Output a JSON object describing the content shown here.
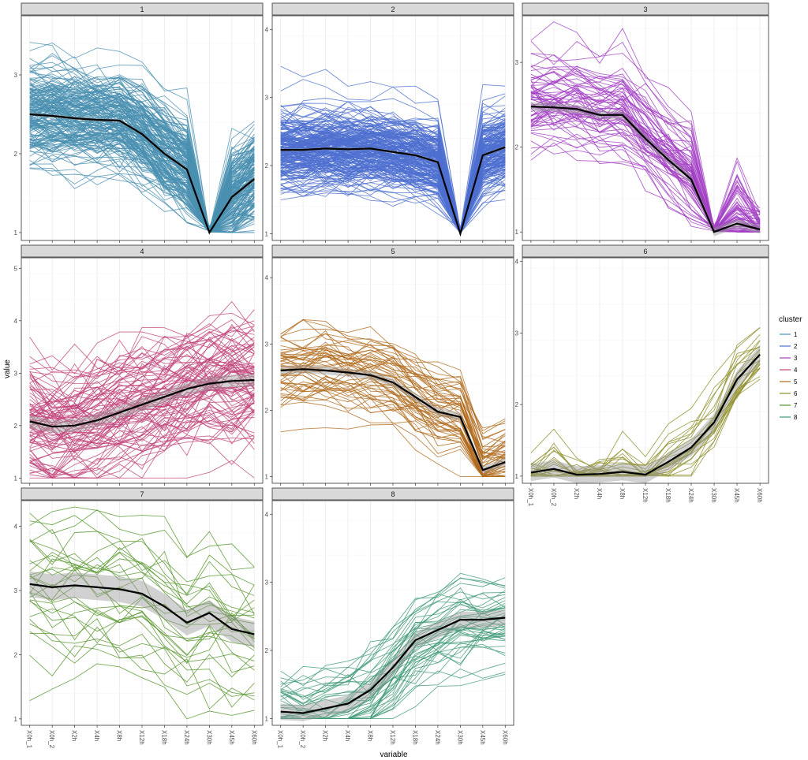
{
  "chart_data": {
    "type": "line",
    "xlabel": "variable",
    "ylabel": "value",
    "categories": [
      "X0h_1",
      "X0h_2",
      "X2h",
      "X4h",
      "X8h",
      "X12h",
      "X18h",
      "X24h",
      "X30h",
      "X45h",
      "X60h"
    ],
    "legend": {
      "title": "cluster",
      "position": "right"
    },
    "grid": true,
    "facets": [
      {
        "label": "1",
        "color": "#4A90B0",
        "ylim": [
          0.9,
          3.75
        ],
        "yticks": [
          1,
          2,
          3
        ],
        "mean": [
          2.5,
          2.48,
          2.45,
          2.43,
          2.42,
          2.25,
          2.0,
          1.8,
          1.0,
          1.45,
          1.68
        ],
        "band": 0.02,
        "n_lines": 180,
        "spread": 0.32,
        "min": 1,
        "max": 3.7
      },
      {
        "label": "2",
        "color": "#4E6FCF",
        "ylim": [
          0.9,
          4.2
        ],
        "yticks": [
          1,
          2,
          3,
          4
        ],
        "mean": [
          2.23,
          2.23,
          2.25,
          2.24,
          2.25,
          2.2,
          2.15,
          2.05,
          1.0,
          2.15,
          2.27
        ],
        "band": 0.02,
        "n_lines": 220,
        "spread": 0.28,
        "min": 1,
        "max": 4.1
      },
      {
        "label": "3",
        "color": "#A23FC4",
        "ylim": [
          0.9,
          3.55
        ],
        "yticks": [
          1,
          2,
          3
        ],
        "mean": [
          2.48,
          2.47,
          2.45,
          2.38,
          2.38,
          2.1,
          1.85,
          1.62,
          1.0,
          1.1,
          1.03
        ],
        "band": 0.05,
        "n_lines": 70,
        "spread": 0.3,
        "min": 1,
        "max": 3.5
      },
      {
        "label": "4",
        "color": "#C2447A",
        "ylim": [
          0.9,
          5.2
        ],
        "yticks": [
          1,
          2,
          3,
          4,
          5
        ],
        "mean": [
          2.08,
          1.98,
          2.0,
          2.1,
          2.25,
          2.4,
          2.55,
          2.7,
          2.8,
          2.85,
          2.87
        ],
        "band": 0.12,
        "n_lines": 90,
        "spread": 0.6,
        "min": 1,
        "max": 5.0
      },
      {
        "label": "5",
        "color": "#B06A1C",
        "ylim": [
          0.9,
          4.3
        ],
        "yticks": [
          1,
          2,
          3,
          4
        ],
        "mean": [
          2.6,
          2.62,
          2.6,
          2.57,
          2.53,
          2.42,
          2.2,
          1.98,
          1.9,
          1.1,
          1.22
        ],
        "band": 0.06,
        "n_lines": 55,
        "spread": 0.3,
        "min": 1,
        "max": 4.2
      },
      {
        "label": "6",
        "color": "#8E8E2A",
        "ylim": [
          0.9,
          4.05
        ],
        "yticks": [
          1,
          2,
          3,
          4
        ],
        "mean": [
          1.05,
          1.1,
          1.02,
          1.03,
          1.06,
          1.02,
          1.2,
          1.4,
          1.75,
          2.35,
          2.7
        ],
        "band": 0.12,
        "n_lines": 25,
        "spread": 0.25,
        "min": 1,
        "max": 3.92
      },
      {
        "label": "7",
        "color": "#55952A",
        "ylim": [
          0.9,
          4.4
        ],
        "yticks": [
          1,
          2,
          3,
          4
        ],
        "mean": [
          3.1,
          3.05,
          3.08,
          3.05,
          3.02,
          2.95,
          2.75,
          2.5,
          2.65,
          2.4,
          2.32
        ],
        "band": 0.2,
        "n_lines": 30,
        "spread": 0.55,
        "min": 1,
        "max": 4.3
      },
      {
        "label": "8",
        "color": "#3E9A76",
        "ylim": [
          0.9,
          4.2
        ],
        "yticks": [
          1,
          2,
          3,
          4
        ],
        "mean": [
          1.1,
          1.08,
          1.15,
          1.22,
          1.42,
          1.75,
          2.15,
          2.3,
          2.45,
          2.45,
          2.48
        ],
        "band": 0.12,
        "n_lines": 45,
        "spread": 0.3,
        "min": 1,
        "max": 4.18
      }
    ]
  }
}
